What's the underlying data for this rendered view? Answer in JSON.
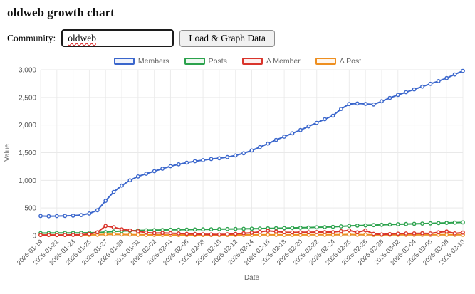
{
  "page": {
    "title": "oldweb growth chart"
  },
  "form": {
    "community_label": "Community:",
    "community_value": "oldweb",
    "load_button_label": "Load & Graph Data"
  },
  "chart_data": {
    "type": "line",
    "title": "",
    "xlabel": "Date",
    "ylabel": "Value",
    "ylim": [
      0,
      3000
    ],
    "yticks": [
      0,
      500,
      1000,
      1500,
      2000,
      2500,
      3000
    ],
    "ytick_labels": [
      "0",
      "500",
      "1,000",
      "1,500",
      "2,000",
      "2,500",
      "3,000"
    ],
    "grid": true,
    "legend_position": "top",
    "x_label_every": 2,
    "x": [
      "2026-01-19",
      "2026-01-20",
      "2026-01-21",
      "2026-01-22",
      "2026-01-23",
      "2026-01-24",
      "2026-01-25",
      "2026-01-26",
      "2026-01-27",
      "2026-01-28",
      "2026-01-29",
      "2026-01-30",
      "2026-01-31",
      "2026-02-01",
      "2026-02-02",
      "2026-02-03",
      "2026-02-04",
      "2026-02-05",
      "2026-02-06",
      "2026-02-07",
      "2026-02-08",
      "2026-02-09",
      "2026-02-10",
      "2026-02-11",
      "2026-02-12",
      "2026-02-13",
      "2026-02-14",
      "2026-02-15",
      "2026-02-16",
      "2026-02-17",
      "2026-02-18",
      "2026-02-19",
      "2026-02-20",
      "2026-02-21",
      "2026-02-22",
      "2026-02-23",
      "2026-02-24",
      "2026-02-25",
      "2026-02-25",
      "2026-02-26",
      "2026-02-26",
      "2026-02-27",
      "2026-02-28",
      "2026-03-01",
      "2026-03-02",
      "2026-03-03",
      "2026-03-04",
      "2026-03-05",
      "2026-03-06",
      "2026-03-07",
      "2026-03-08",
      "2026-03-09",
      "2026-03-10"
    ],
    "series": [
      {
        "name": "Members",
        "color": "#3a66cc",
        "values": [
          355,
          352,
          354,
          357,
          362,
          372,
          400,
          460,
          630,
          790,
          905,
          1000,
          1070,
          1120,
          1165,
          1210,
          1255,
          1290,
          1320,
          1345,
          1365,
          1385,
          1400,
          1420,
          1450,
          1490,
          1540,
          1600,
          1665,
          1730,
          1790,
          1850,
          1910,
          1975,
          2040,
          2105,
          2170,
          2290,
          2380,
          2390,
          2382,
          2372,
          2430,
          2490,
          2545,
          2595,
          2645,
          2695,
          2745,
          2795,
          2850,
          2915,
          2980
        ]
      },
      {
        "name": "Posts",
        "color": "#2ba24c",
        "values": [
          45,
          46,
          47,
          48,
          49,
          50,
          52,
          56,
          65,
          75,
          82,
          88,
          93,
          96,
          99,
          102,
          105,
          107,
          109,
          111,
          113,
          115,
          117,
          119,
          121,
          123,
          125,
          128,
          131,
          134,
          137,
          140,
          143,
          147,
          151,
          155,
          160,
          168,
          176,
          182,
          186,
          190,
          196,
          201,
          206,
          210,
          214,
          218,
          222,
          226,
          230,
          235,
          240
        ]
      },
      {
        "name": "Δ Member",
        "color": "#d9342b",
        "values": [
          10,
          12,
          10,
          12,
          13,
          15,
          28,
          60,
          175,
          152,
          115,
          95,
          78,
          55,
          45,
          48,
          44,
          38,
          32,
          28,
          25,
          22,
          20,
          25,
          32,
          42,
          52,
          68,
          88,
          75,
          62,
          58,
          60,
          62,
          64,
          65,
          65,
          80,
          95,
          60,
          95,
          32,
          22,
          28,
          35,
          38,
          40,
          42,
          38,
          60,
          75,
          40,
          55
        ]
      },
      {
        "name": "Δ Post",
        "color": "#ee8f20",
        "values": [
          12,
          11,
          12,
          12,
          13,
          13,
          14,
          16,
          22,
          25,
          20,
          18,
          16,
          14,
          13,
          13,
          12,
          12,
          12,
          12,
          12,
          12,
          12,
          12,
          13,
          13,
          14,
          14,
          15,
          14,
          14,
          14,
          14,
          15,
          15,
          15,
          16,
          18,
          20,
          16,
          18,
          14,
          14,
          15,
          15,
          15,
          15,
          15,
          15,
          16,
          16,
          15,
          16
        ]
      }
    ]
  }
}
